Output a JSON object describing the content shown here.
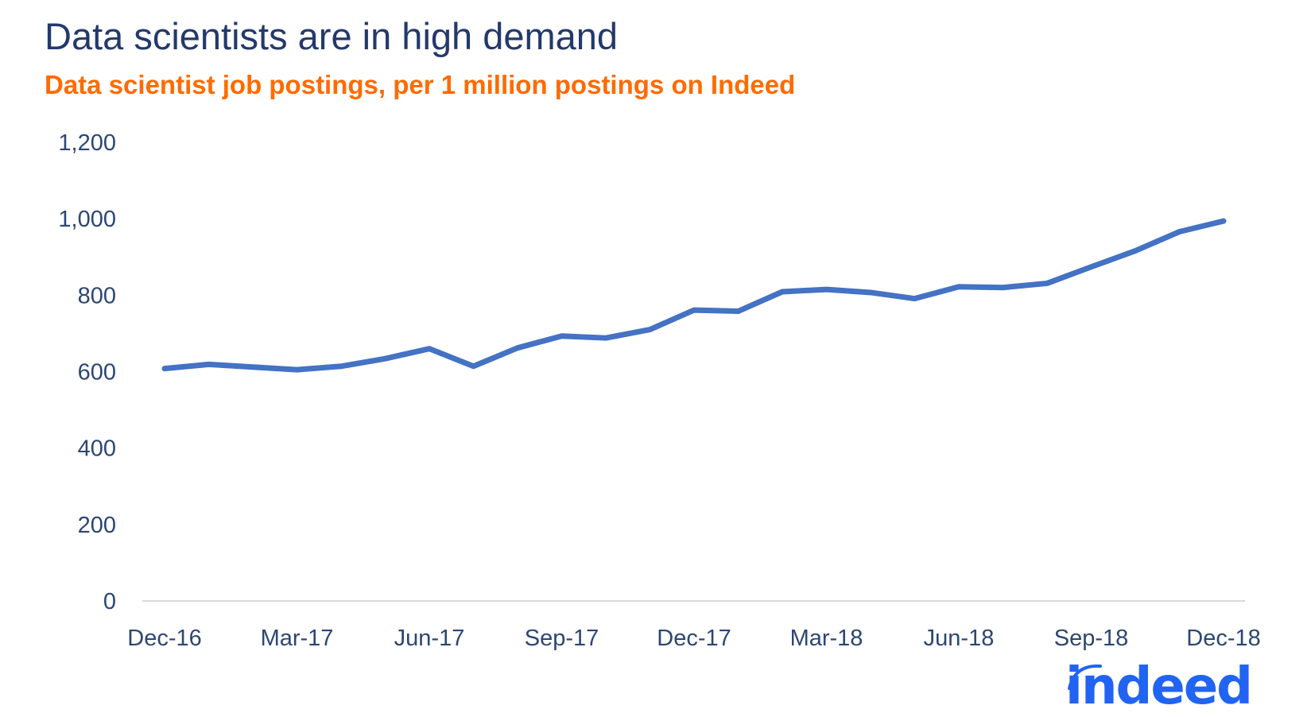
{
  "title": "Data scientists are in high demand",
  "subtitle": "Data scientist job postings, per 1 million postings on Indeed",
  "logo_text": "indeed",
  "colors": {
    "title": "#24396b",
    "subtitle": "#ff6a00",
    "line": "#4472c4",
    "logo": "#2164f3",
    "axis": "#d9d9d9"
  },
  "chart_data": {
    "type": "line",
    "title": "Data scientists are in high demand",
    "subtitle": "Data scientist job postings, per 1 million postings on Indeed",
    "xlabel": "",
    "ylabel": "",
    "x": [
      "Dec-16",
      "Jan-17",
      "Feb-17",
      "Mar-17",
      "Apr-17",
      "May-17",
      "Jun-17",
      "Jul-17",
      "Aug-17",
      "Sep-17",
      "Oct-17",
      "Nov-17",
      "Dec-17",
      "Jan-18",
      "Feb-18",
      "Mar-18",
      "Apr-18",
      "May-18",
      "Jun-18",
      "Jul-18",
      "Aug-18",
      "Sep-18",
      "Oct-18",
      "Nov-18",
      "Dec-18"
    ],
    "x_tick_labels": [
      "Dec-16",
      "Mar-17",
      "Jun-17",
      "Sep-17",
      "Dec-17",
      "Mar-18",
      "Jun-18",
      "Sep-18",
      "Dec-18"
    ],
    "series": [
      {
        "values": [
          608,
          619,
          612,
          605,
          614,
          634,
          660,
          614,
          662,
          693,
          688,
          710,
          761,
          758,
          809,
          815,
          807,
          791,
          822,
          820,
          831,
          874,
          916,
          966,
          994
        ]
      }
    ],
    "ylim": [
      0,
      1200
    ],
    "y_ticks": [
      0,
      200,
      400,
      600,
      800,
      1000,
      1200
    ],
    "y_tick_labels": [
      "0",
      "200",
      "400",
      "600",
      "800",
      "1,000",
      "1,200"
    ],
    "grid": false,
    "legend": "none"
  }
}
